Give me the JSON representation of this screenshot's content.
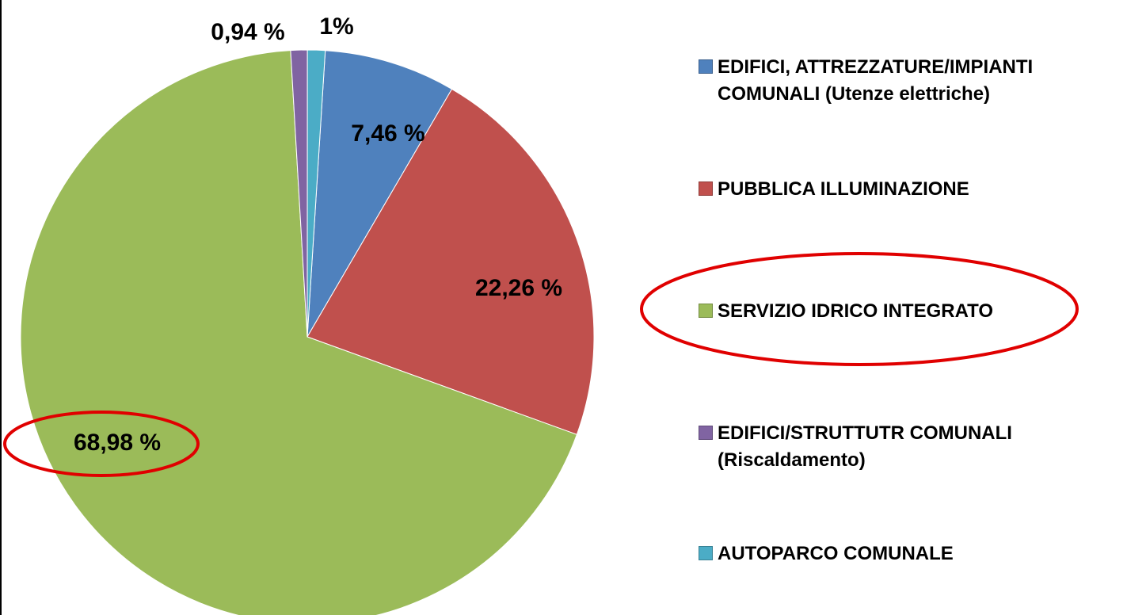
{
  "chart_data": {
    "type": "pie",
    "categories": [
      "EDIFICI, ATTREZZATURE/IMPIANTI COMUNALI (Utenze elettriche)",
      "PUBBLICA ILLUMINAZIONE",
      "SERVIZIO IDRICO INTEGRATO",
      "EDIFICI/STRUTTUTR COMUNALI (Riscaldamento)",
      "AUTOPARCO COMUNALE"
    ],
    "values": [
      7.46,
      22.26,
      68.98,
      0.94,
      1
    ],
    "value_labels": [
      "7,46 %",
      "22,26 %",
      "68,98 %",
      "0,94 %",
      "1%"
    ],
    "colors": [
      "#4f81bd",
      "#c0504d",
      "#9bbb59",
      "#8064a2",
      "#4bacc6"
    ],
    "legend": "right"
  }
}
